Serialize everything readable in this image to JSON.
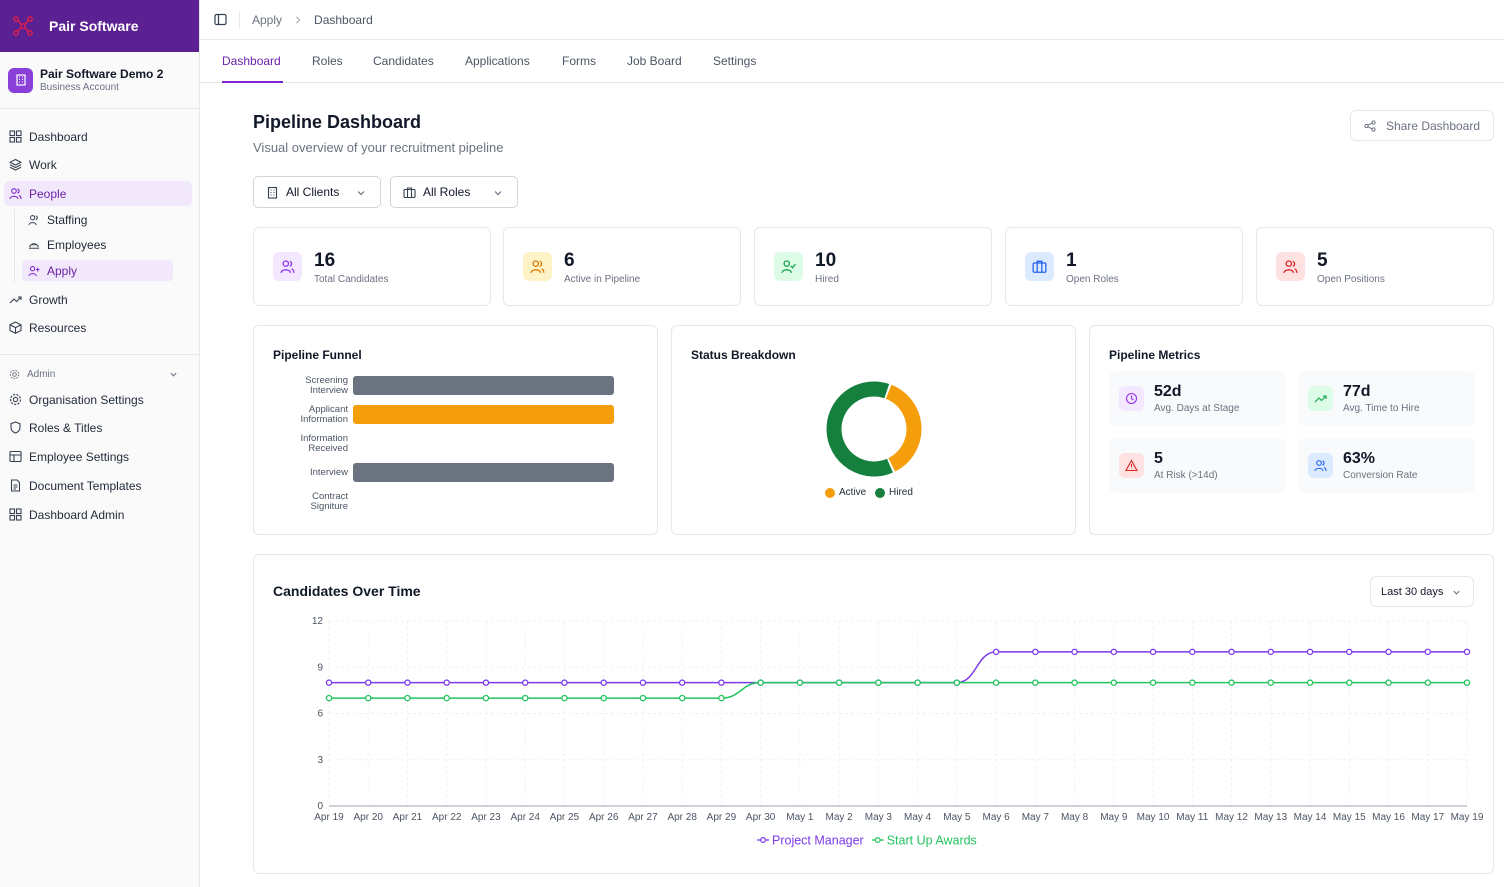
{
  "brand": {
    "name": "Pair Software"
  },
  "account": {
    "name": "Pair Software Demo 2",
    "type": "Business Account"
  },
  "sidebar": {
    "items": [
      {
        "label": "Dashboard"
      },
      {
        "label": "Work"
      },
      {
        "label": "People"
      },
      {
        "label": "Growth"
      },
      {
        "label": "Resources"
      }
    ],
    "people_sub": [
      {
        "label": "Staffing"
      },
      {
        "label": "Employees"
      },
      {
        "label": "Apply"
      }
    ],
    "admin_label": "Admin",
    "admin_items": [
      {
        "label": "Organisation Settings"
      },
      {
        "label": "Roles & Titles"
      },
      {
        "label": "Employee Settings"
      },
      {
        "label": "Document Templates"
      },
      {
        "label": "Dashboard Admin"
      }
    ]
  },
  "breadcrumb": {
    "parent": "Apply",
    "current": "Dashboard"
  },
  "tabs": [
    {
      "label": "Dashboard"
    },
    {
      "label": "Roles"
    },
    {
      "label": "Candidates"
    },
    {
      "label": "Applications"
    },
    {
      "label": "Forms"
    },
    {
      "label": "Job Board"
    },
    {
      "label": "Settings"
    }
  ],
  "page": {
    "title": "Pipeline Dashboard",
    "subtitle": "Visual overview of your recruitment pipeline",
    "share_label": "Share Dashboard"
  },
  "filters": {
    "clients": "All Clients",
    "roles": "All Roles"
  },
  "stats": [
    {
      "value": "16",
      "label": "Total Candidates"
    },
    {
      "value": "6",
      "label": "Active in Pipeline"
    },
    {
      "value": "10",
      "label": "Hired"
    },
    {
      "value": "1",
      "label": "Open Roles"
    },
    {
      "value": "5",
      "label": "Open Positions"
    }
  ],
  "funnel": {
    "title": "Pipeline Funnel",
    "stages": [
      {
        "label_line1": "Screening",
        "label_line2": "Interview",
        "fill": 1.0,
        "color": "#6b7280"
      },
      {
        "label_line1": "Applicant",
        "label_line2": "Information",
        "fill": 1.0,
        "color": "#f59e0b"
      },
      {
        "label_line1": "Information",
        "label_line2": "Received",
        "fill": 0,
        "color": "#6b7280"
      },
      {
        "label_line1": "Interview",
        "label_line2": "",
        "fill": 1.0,
        "color": "#6b7280"
      },
      {
        "label_line1": "Contract",
        "label_line2": "Signiture",
        "fill": 0,
        "color": "#6b7280"
      }
    ]
  },
  "status": {
    "title": "Status Breakdown",
    "slices": [
      {
        "name": "Active",
        "value": 6,
        "color": "#f59e0b"
      },
      {
        "name": "Hired",
        "value": 10,
        "color": "#15803d"
      }
    ]
  },
  "metrics": {
    "title": "Pipeline Metrics",
    "items": [
      {
        "value": "52d",
        "label": "Avg. Days at Stage"
      },
      {
        "value": "77d",
        "label": "Avg. Time to Hire"
      },
      {
        "value": "5",
        "label": "At Risk (>14d)"
      },
      {
        "value": "63%",
        "label": "Conversion Rate"
      }
    ]
  },
  "timeline": {
    "title": "Candidates Over Time",
    "range_label": "Last 30 days"
  },
  "chart_data": {
    "type": "line",
    "x": [
      "Apr 19",
      "Apr 20",
      "Apr 21",
      "Apr 22",
      "Apr 23",
      "Apr 24",
      "Apr 25",
      "Apr 26",
      "Apr 27",
      "Apr 28",
      "Apr 29",
      "Apr 30",
      "May 1",
      "May 2",
      "May 3",
      "May 4",
      "May 5",
      "May 6",
      "May 7",
      "May 8",
      "May 9",
      "May 10",
      "May 11",
      "May 12",
      "May 13",
      "May 14",
      "May 15",
      "May 16",
      "May 17",
      "May 19"
    ],
    "yticks": [
      0,
      3,
      6,
      9,
      12
    ],
    "ylim": [
      0,
      12
    ],
    "series": [
      {
        "name": "Project Manager",
        "color": "#7c3aed",
        "values": [
          8,
          8,
          8,
          8,
          8,
          8,
          8,
          8,
          8,
          8,
          8,
          8,
          8,
          8,
          8,
          8,
          8,
          10,
          10,
          10,
          10,
          10,
          10,
          10,
          10,
          10,
          10,
          10,
          10,
          10
        ]
      },
      {
        "name": "Start Up Awards",
        "color": "#22c55e",
        "values": [
          7,
          7,
          7,
          7,
          7,
          7,
          7,
          7,
          7,
          7,
          7,
          8,
          8,
          8,
          8,
          8,
          8,
          8,
          8,
          8,
          8,
          8,
          8,
          8,
          8,
          8,
          8,
          8,
          8,
          8
        ]
      }
    ]
  }
}
